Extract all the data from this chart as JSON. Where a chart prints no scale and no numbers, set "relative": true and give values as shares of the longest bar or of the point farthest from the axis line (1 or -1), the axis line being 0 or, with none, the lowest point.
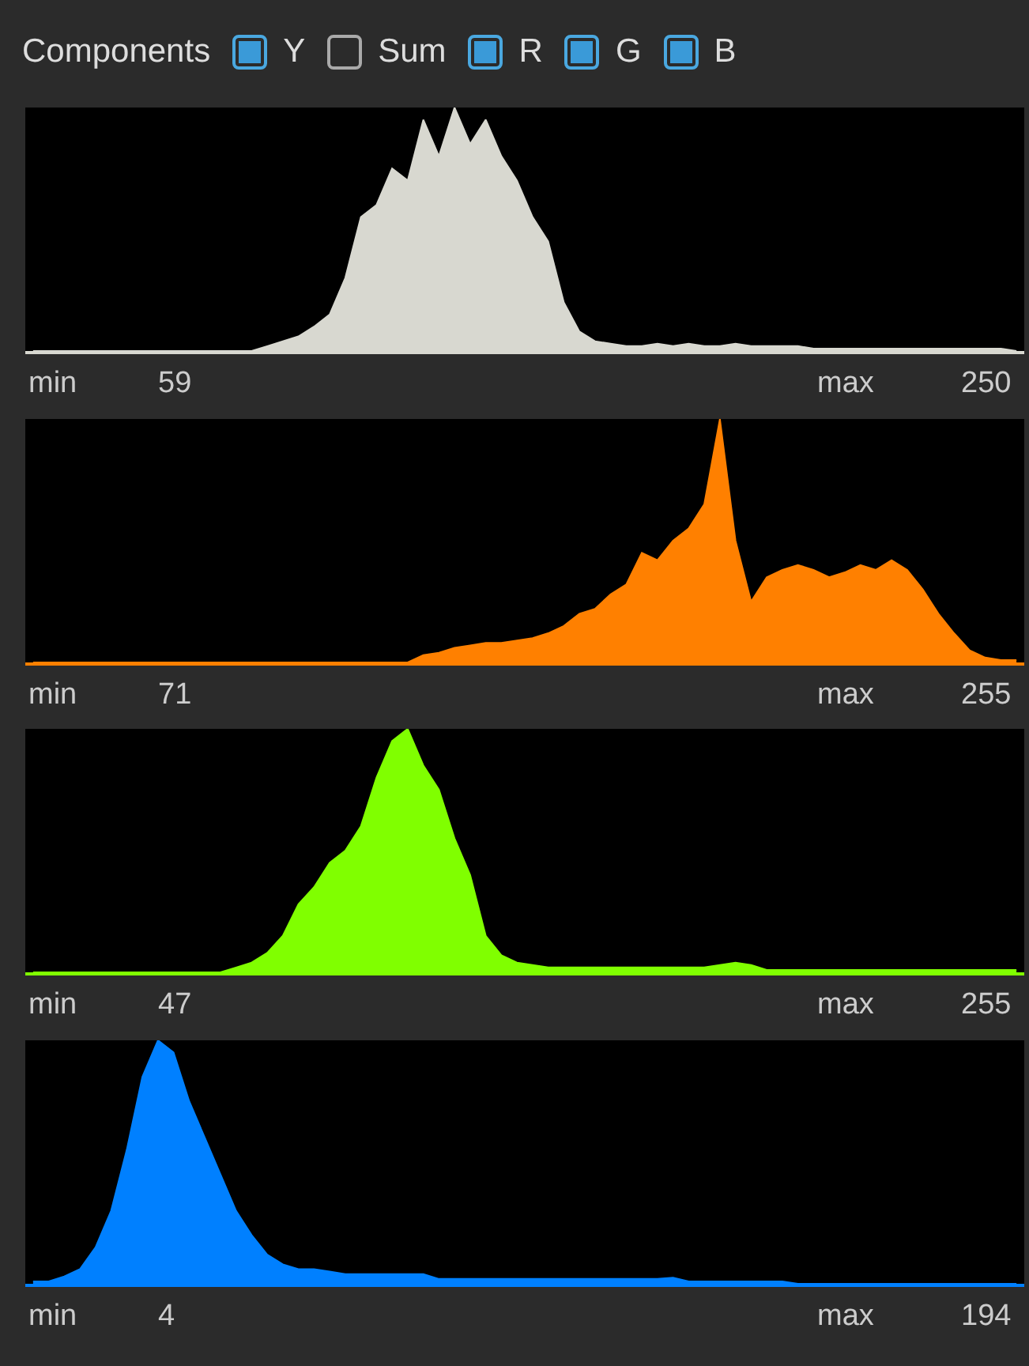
{
  "chart_data": [
    {
      "type": "other",
      "annotations": [
        "Components",
        "Y",
        "Sum",
        "R",
        "G",
        "B"
      ]
    },
    {
      "type": "area",
      "relative": true,
      "categories": [
        null,
        null,
        null,
        null,
        null,
        null,
        null,
        null,
        null,
        null,
        null,
        null,
        null,
        null,
        null,
        null,
        null,
        null,
        null,
        null,
        null,
        null,
        null,
        null,
        null,
        null,
        null,
        null,
        null,
        null,
        null,
        null,
        null,
        null,
        null,
        null,
        null,
        null,
        null,
        null,
        null,
        null,
        null,
        null,
        null,
        null,
        null,
        null,
        null,
        null,
        null,
        null,
        null,
        null,
        null,
        null,
        null,
        null,
        null,
        null,
        null,
        null,
        null,
        null
      ],
      "color": "#d8d8d0",
      "values": [
        0,
        0,
        0,
        0,
        0,
        0,
        0,
        0,
        0,
        0,
        0,
        0,
        0,
        0,
        0,
        0.02,
        0.04,
        0.06,
        0.1,
        0.15,
        0.3,
        0.55,
        0.6,
        0.75,
        0.7,
        0.95,
        0.8,
        1,
        0.85,
        0.95,
        0.8,
        0.7,
        0.55,
        0.45,
        0.2,
        0.08,
        0.04,
        0.03,
        0.02,
        0.02,
        0.03,
        0.02,
        0.03,
        0.02,
        0.02,
        0.03,
        0.02,
        0.02,
        0.02,
        0.02,
        0.01,
        0.01,
        0.01,
        0.01,
        0.01,
        0.01,
        0.01,
        0.01,
        0.01,
        0.01,
        0.01,
        0.01,
        0.01,
        0
      ],
      "annotations": [
        "min",
        "59",
        "max",
        "250"
      ]
    },
    {
      "type": "area",
      "relative": true,
      "categories": [
        null,
        null,
        null,
        null,
        null,
        null,
        null,
        null,
        null,
        null,
        null,
        null,
        null,
        null,
        null,
        null,
        null,
        null,
        null,
        null,
        null,
        null,
        null,
        null,
        null,
        null,
        null,
        null,
        null,
        null,
        null,
        null,
        null,
        null,
        null,
        null,
        null,
        null,
        null,
        null,
        null,
        null,
        null,
        null,
        null,
        null,
        null,
        null,
        null,
        null,
        null,
        null,
        null,
        null,
        null,
        null,
        null,
        null,
        null,
        null,
        null,
        null,
        null,
        null
      ],
      "color": "#ff8000",
      "values": [
        0,
        0,
        0,
        0,
        0,
        0,
        0,
        0,
        0,
        0,
        0,
        0,
        0,
        0,
        0,
        0,
        0,
        0,
        0,
        0,
        0,
        0,
        0,
        0,
        0,
        0.03,
        0.04,
        0.06,
        0.07,
        0.08,
        0.08,
        0.09,
        0.1,
        0.12,
        0.15,
        0.2,
        0.22,
        0.28,
        0.32,
        0.45,
        0.42,
        0.5,
        0.55,
        0.65,
        1,
        0.5,
        0.25,
        0.35,
        0.38,
        0.4,
        0.38,
        0.35,
        0.37,
        0.4,
        0.38,
        0.42,
        0.38,
        0.3,
        0.2,
        0.12,
        0.05,
        0.02,
        0.01,
        0.01
      ],
      "annotations": [
        "min",
        "71",
        "max",
        "255"
      ]
    },
    {
      "type": "area",
      "relative": true,
      "categories": [
        null,
        null,
        null,
        null,
        null,
        null,
        null,
        null,
        null,
        null,
        null,
        null,
        null,
        null,
        null,
        null,
        null,
        null,
        null,
        null,
        null,
        null,
        null,
        null,
        null,
        null,
        null,
        null,
        null,
        null,
        null,
        null,
        null,
        null,
        null,
        null,
        null,
        null,
        null,
        null,
        null,
        null,
        null,
        null,
        null,
        null,
        null,
        null,
        null,
        null,
        null,
        null,
        null,
        null,
        null,
        null,
        null,
        null,
        null,
        null,
        null,
        null,
        null,
        null
      ],
      "color": "#80ff00",
      "values": [
        0,
        0,
        0,
        0,
        0,
        0,
        0,
        0,
        0,
        0,
        0,
        0,
        0,
        0.02,
        0.04,
        0.08,
        0.15,
        0.28,
        0.35,
        0.45,
        0.5,
        0.6,
        0.8,
        0.95,
        1,
        0.85,
        0.75,
        0.55,
        0.4,
        0.15,
        0.07,
        0.04,
        0.03,
        0.02,
        0.02,
        0.02,
        0.02,
        0.02,
        0.02,
        0.02,
        0.02,
        0.02,
        0.02,
        0.02,
        0.03,
        0.04,
        0.03,
        0.01,
        0.01,
        0.01,
        0.01,
        0.01,
        0.01,
        0.01,
        0.01,
        0.01,
        0.01,
        0.01,
        0.01,
        0.01,
        0.01,
        0.01,
        0.01,
        0.01
      ],
      "annotations": [
        "min",
        "47",
        "max",
        "255"
      ]
    },
    {
      "type": "area",
      "relative": true,
      "categories": [
        null,
        null,
        null,
        null,
        null,
        null,
        null,
        null,
        null,
        null,
        null,
        null,
        null,
        null,
        null,
        null,
        null,
        null,
        null,
        null,
        null,
        null,
        null,
        null,
        null,
        null,
        null,
        null,
        null,
        null,
        null,
        null,
        null,
        null,
        null,
        null,
        null,
        null,
        null,
        null,
        null,
        null,
        null,
        null,
        null,
        null,
        null,
        null,
        null,
        null,
        null,
        null,
        null,
        null,
        null,
        null,
        null,
        null,
        null,
        null,
        null,
        null,
        null,
        null
      ],
      "color": "#0080ff",
      "values": [
        0.01,
        0.01,
        0.03,
        0.06,
        0.15,
        0.3,
        0.55,
        0.85,
        1,
        0.95,
        0.75,
        0.6,
        0.45,
        0.3,
        0.2,
        0.12,
        0.08,
        0.06,
        0.06,
        0.05,
        0.04,
        0.04,
        0.04,
        0.04,
        0.04,
        0.04,
        0.02,
        0.02,
        0.02,
        0.02,
        0.02,
        0.02,
        0.02,
        0.02,
        0.02,
        0.02,
        0.02,
        0.02,
        0.02,
        0.02,
        0.02,
        0.025,
        0.01,
        0.01,
        0.01,
        0.01,
        0.01,
        0.01,
        0.01,
        0,
        0,
        0,
        0,
        0,
        0,
        0,
        0,
        0,
        0,
        0,
        0,
        0,
        0,
        0
      ],
      "annotations": [
        "min",
        "4",
        "max",
        "194"
      ]
    }
  ]
}
